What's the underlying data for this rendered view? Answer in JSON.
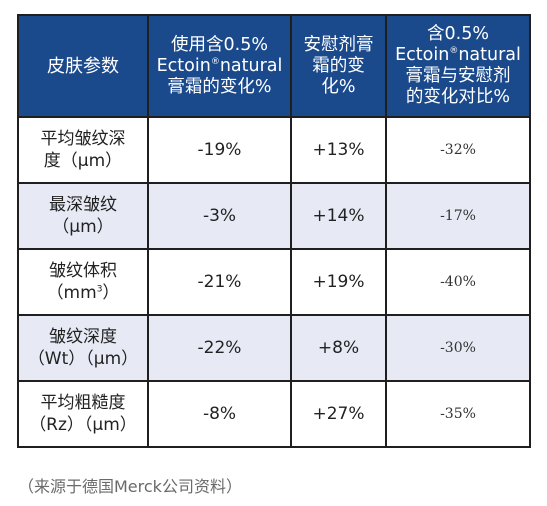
{
  "table": {
    "headers": {
      "param": "皮肤参数",
      "col1_line1": "使用含0.5%",
      "col1_line2_pre": "Ectoin",
      "col1_line2_reg": "®",
      "col1_line2_post": "natural",
      "col1_line3": "膏霜的变化%",
      "col2_line1": "安慰剂膏",
      "col2_line2": "霜的变",
      "col2_line3": "化%",
      "col3_line1": "含0.5%",
      "col3_line2_pre": "Ectoin",
      "col3_line2_reg": "®",
      "col3_line2_post": "natural",
      "col3_line3": "膏霜与安慰剂",
      "col3_line4": "的变化对比%"
    },
    "rows": [
      {
        "name_line1": "平均皱纹深",
        "name_line2": "度（μm）",
        "name_sup": "",
        "name_line2_tail": "",
        "active": "-19%",
        "placebo": "+13%",
        "comparison": "-32%"
      },
      {
        "name_line1": "最深皱纹",
        "name_line2": "（μm）",
        "name_sup": "",
        "name_line2_tail": "",
        "active": "-3%",
        "placebo": "+14%",
        "comparison": "-17%"
      },
      {
        "name_line1": "皱纹体积",
        "name_line2": "（mm",
        "name_sup": "3",
        "name_line2_tail": "）",
        "active": "-21%",
        "placebo": "+19%",
        "comparison": "-40%"
      },
      {
        "name_line1": "皱纹深度",
        "name_line2": "（Wt）（μm）",
        "name_sup": "",
        "name_line2_tail": "",
        "active": "-22%",
        "placebo": "+8%",
        "comparison": "-30%"
      },
      {
        "name_line1": "平均粗糙度",
        "name_line2": "（Rz）（μm）",
        "name_sup": "",
        "name_line2_tail": "",
        "active": "-8%",
        "placebo": "+27%",
        "comparison": "-35%"
      }
    ]
  },
  "source_note": "（来源于德国Merck公司资料）",
  "colors": {
    "header_bg": "#1b4a8c",
    "header_text": "#ffffff",
    "shaded_row_bg": "#e7eaf4",
    "border": "#1f1f1f"
  }
}
